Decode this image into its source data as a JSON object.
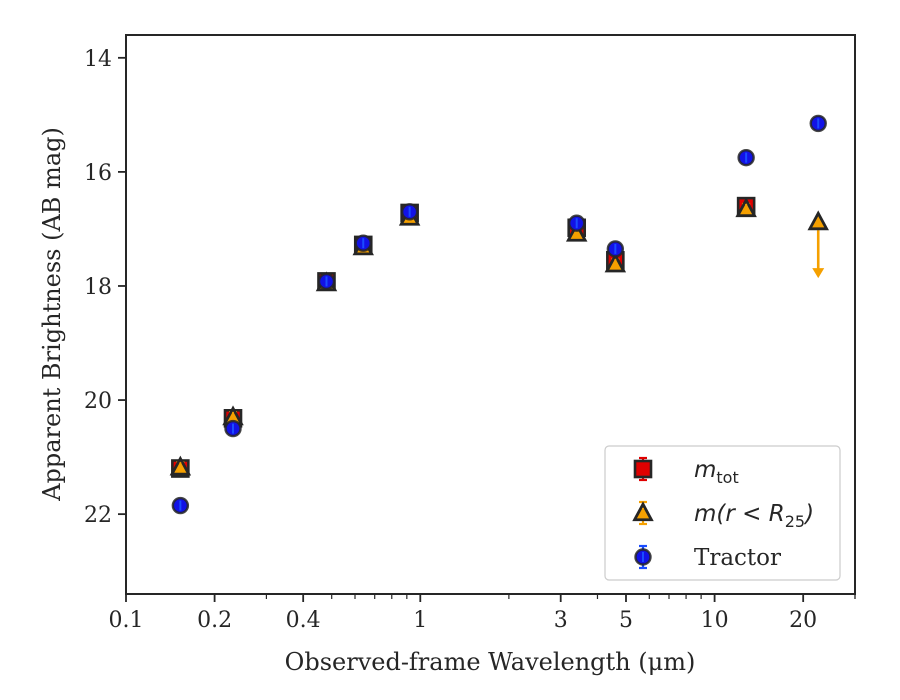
{
  "chart_data": {
    "type": "scatter",
    "xlabel": "Observed-frame Wavelength (μm)",
    "ylabel": "Apparent Brightness (AB mag)",
    "x_scale": "log",
    "xlim": [
      0.1,
      30
    ],
    "ylim": [
      23.4,
      13.6
    ],
    "y_inverted": true,
    "x_ticks": [
      0.1,
      0.2,
      0.4,
      1,
      3,
      5,
      10,
      20
    ],
    "x_tick_labels": [
      "0.1",
      "0.2",
      "0.4",
      "1",
      "3",
      "5",
      "10",
      "20"
    ],
    "y_ticks": [
      14,
      16,
      18,
      20,
      22
    ],
    "y_tick_labels": [
      "14",
      "16",
      "18",
      "20",
      "22"
    ],
    "grid": false,
    "legend_position": "bottom-right",
    "series": [
      {
        "name": "m_tot",
        "marker": "square",
        "face_color": "#e00000",
        "edge_color": "#262626",
        "errorbar_color": "#e00000",
        "x": [
          0.153,
          0.231,
          0.48,
          0.64,
          0.92,
          3.4,
          4.6,
          12.8
        ],
        "y": [
          21.2,
          20.32,
          17.92,
          17.28,
          16.72,
          16.98,
          17.55,
          16.6
        ]
      },
      {
        "name": "m(r < R_25)",
        "marker": "triangle",
        "face_color": "#f5a000",
        "edge_color": "#262626",
        "errorbar_color": "#f5a000",
        "x": [
          0.153,
          0.231,
          0.48,
          0.64,
          0.92,
          3.4,
          4.6,
          12.8,
          22.5
        ],
        "y": [
          21.18,
          20.3,
          17.95,
          17.32,
          16.8,
          17.08,
          17.62,
          16.65,
          16.88
        ],
        "upper_limit": [
          false,
          false,
          false,
          false,
          false,
          false,
          false,
          false,
          true
        ]
      },
      {
        "name": "Tractor",
        "marker": "circle",
        "face_color": "#1212e6",
        "edge_color": "#262626",
        "errorbar_color": "#1a4cff",
        "x": [
          0.153,
          0.231,
          0.48,
          0.64,
          0.92,
          3.4,
          4.6,
          12.8,
          22.5
        ],
        "y": [
          21.85,
          20.5,
          17.92,
          17.25,
          16.7,
          16.9,
          17.35,
          15.75,
          15.15
        ]
      }
    ],
    "legend": {
      "entries": [
        {
          "label": "m",
          "label_sub": "tot",
          "style": "math"
        },
        {
          "label": "m(r < R",
          "label_sub": "25",
          "label_tail": ")",
          "style": "math"
        },
        {
          "label": "Tractor",
          "style": "text"
        }
      ]
    }
  }
}
